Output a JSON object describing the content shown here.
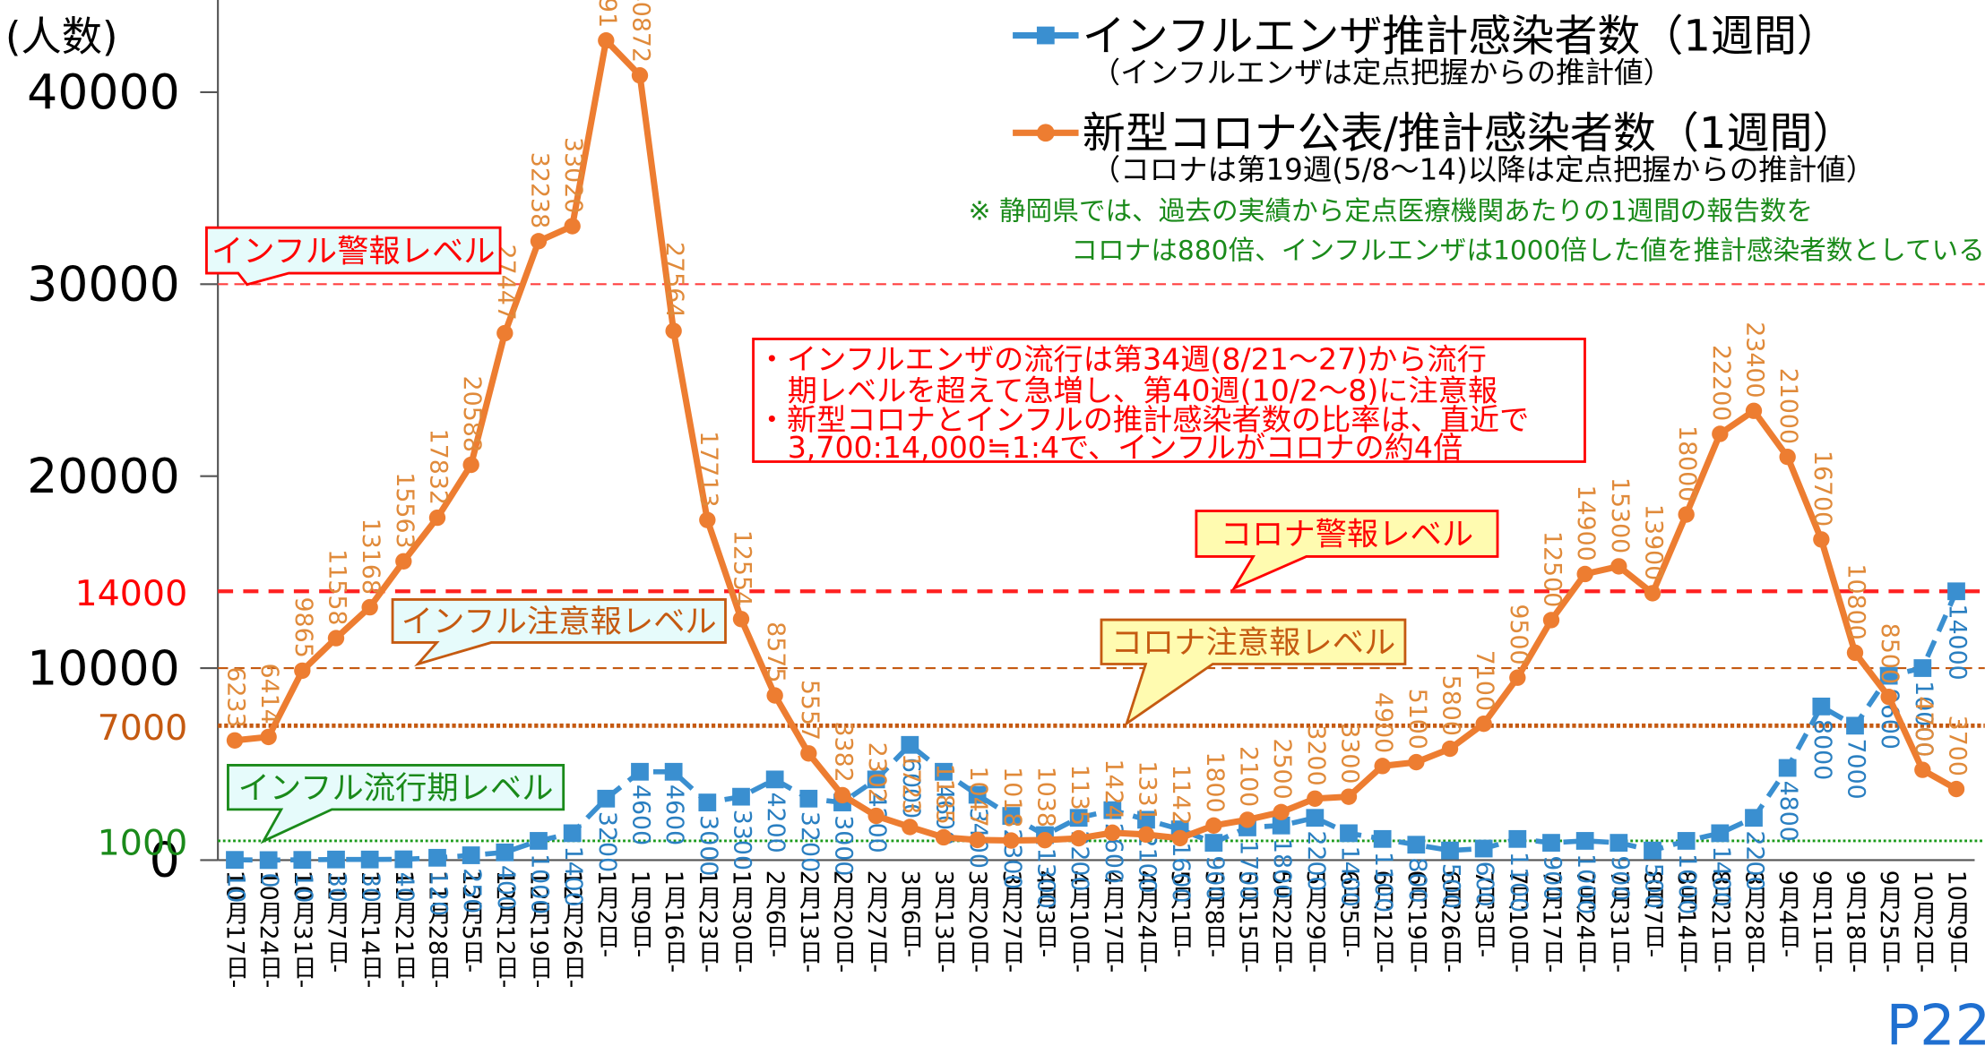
{
  "chart_data": {
    "type": "line",
    "y_label": "(人数)",
    "categories": [
      "10月17日-",
      "10月24日-",
      "10月31日-",
      "11月7日-",
      "11月14日-",
      "11月21日-",
      "11月28日-",
      "12月5日-",
      "12月12日-",
      "12月19日-",
      "12月26日-",
      "1月2日-",
      "1月9日-",
      "1月16日-",
      "1月23日-",
      "1月30日-",
      "2月6日-",
      "2月13日-",
      "2月20日-",
      "2月27日-",
      "3月6日-",
      "3月13日-",
      "3月20日-",
      "3月27日-",
      "4月3日-",
      "4月10日-",
      "4月17日-",
      "4月24日-",
      "5月1日-",
      "5月8日-",
      "5月15日-",
      "5月22日-",
      "5月29日-",
      "6月5日-",
      "6月12日-",
      "6月19日-",
      "6月26日-",
      "7月3日-",
      "7月10日-",
      "7月17日-",
      "7月24日-",
      "7月31日-",
      "8月7日-",
      "8月14日-",
      "8月21日-",
      "8月28日-",
      "9月4日-",
      "9月11日-",
      "9月18日-",
      "9月25日-",
      "10月2日-",
      "10月9日-"
    ],
    "series": [
      {
        "name": "インフルエンザ推計感染者数（1週間）",
        "note": "（インフルエンザは定点把握からの推計値）",
        "color": "#3a8fd0",
        "label_color": "#2a7fc1",
        "marker": "square",
        "dashed": true,
        "values": [
          10,
          0,
          10,
          30,
          30,
          40,
          120,
          250,
          400,
          1000,
          1400,
          3200,
          4600,
          4600,
          3000,
          3300,
          4200,
          3200,
          3000,
          4200,
          6000,
          4600,
          3400,
          2300,
          1300,
          2200,
          2600,
          2100,
          1600,
          900,
          1700,
          1800,
          2200,
          1400,
          1100,
          800,
          500,
          600,
          1100,
          900,
          1000,
          900,
          500,
          1000,
          1400,
          2200,
          4800,
          8000,
          7000,
          9600,
          10000,
          14000
        ]
      },
      {
        "name": "新型コロナ公表/推計感染者数（1週間）",
        "note": "（コロナは第19週(5/8～14)以降は定点把握からの推計値）",
        "color": "#ed7d31",
        "label_color": "#e08a3a",
        "marker": "circle",
        "dashed": false,
        "values": [
          6233,
          6414,
          9865,
          11558,
          13168,
          15563,
          17832,
          20588,
          27447,
          32238,
          33020,
          42691,
          40872,
          27564,
          17713,
          12554,
          8575,
          5557,
          3382,
          2302,
          1723,
          1185,
          1047,
          1018,
          1038,
          1135,
          1424,
          1331,
          1142,
          1800,
          2100,
          2500,
          3200,
          3300,
          4900,
          5100,
          5800,
          7100,
          9500,
          12500,
          14900,
          15300,
          13900,
          18000,
          22200,
          23400,
          21000,
          16700,
          10800,
          8500,
          4700,
          3700
        ]
      }
    ],
    "ylim": [
      0,
      44800
    ],
    "yticks": [
      0,
      10000,
      20000,
      30000,
      40000
    ],
    "reference_lines": [
      {
        "value": 30000,
        "color": "#ff4040",
        "style": "dashed",
        "callout": "インフル警報レベル",
        "callout_fill": "#e6fbfb"
      },
      {
        "value": 14000,
        "color": "#ff2020",
        "style": "dashed-thick",
        "label_color": "#ff0000",
        "callout": "コロナ警報レベル",
        "callout_fill": "#fffbb0"
      },
      {
        "value": 10000,
        "color": "#c55a11",
        "style": "dashed",
        "callout": "インフル注意報レベル",
        "callout_fill": "#e6fbfb"
      },
      {
        "value": 7000,
        "color": "#c55a11",
        "style": "dotted-thick",
        "label_color": "#c55a11",
        "callout": "コロナ注意報レベル",
        "callout_fill": "#fffbb0"
      },
      {
        "value": 1000,
        "color": "#1a9a1a",
        "style": "dotted",
        "label_color": "#1a8a1a",
        "callout": "インフル流行期レベル",
        "callout_fill": "#e6fbfb"
      }
    ],
    "notes": [
      "※ 静岡県では、過去の実績から定点医療機関あたりの1週間の報告数を",
      "コロナは880倍、インフルエンザは1000倍した値を推計感染者数としている"
    ],
    "summary": [
      "・インフルエンザの流行は第34週(8/21～27)から流行",
      "期レベルを超えて急増し、第40週(10/2～8)に注意報",
      "・新型コロナとインフルの推計感染者数の比率は、直近で",
      "3,700:14,000≒1:4で、インフルがコロナの約4倍"
    ],
    "page": "P22"
  }
}
